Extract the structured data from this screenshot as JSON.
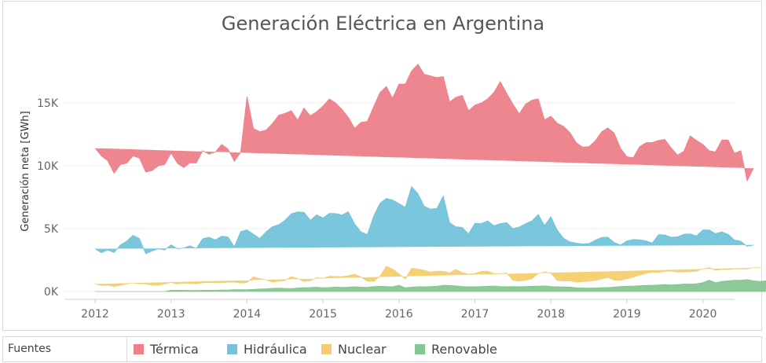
{
  "chart_data": {
    "type": "area",
    "stacked": true,
    "title": "Generación Eléctrica en Argentina",
    "xlabel": "",
    "ylabel": "Generación neta [GWh]",
    "ylim": [
      0,
      19000
    ],
    "y_ticks": [
      0,
      5000,
      10000,
      15000
    ],
    "y_tick_labels": [
      "0K",
      "5K",
      "10K",
      "15K"
    ],
    "x_ticks": [
      2012,
      2013,
      2014,
      2015,
      2016,
      2017,
      2018,
      2019,
      2020
    ],
    "x_tick_labels": [
      "2012",
      "2013",
      "2014",
      "2015",
      "2016",
      "2017",
      "2018",
      "2019",
      "2020"
    ],
    "x_start": 2012.0,
    "x_step_months": 1,
    "grid": "horizontal",
    "legend_position": "bottom",
    "series": [
      {
        "name": "Renovable",
        "color": "#86c691",
        "values": [
          0,
          0,
          0,
          0,
          0,
          0,
          0,
          0,
          0,
          0,
          0,
          0,
          100,
          100,
          100,
          80,
          80,
          100,
          100,
          100,
          120,
          120,
          150,
          150,
          150,
          170,
          200,
          220,
          250,
          270,
          250,
          230,
          280,
          300,
          320,
          350,
          300,
          320,
          350,
          330,
          350,
          380,
          350,
          330,
          400,
          420,
          400,
          380,
          500,
          300,
          350,
          380,
          380,
          400,
          420,
          500,
          480,
          450,
          400,
          380,
          380,
          400,
          420,
          440,
          400,
          380,
          400,
          380,
          400,
          420,
          430,
          450,
          400,
          380,
          360,
          350,
          300,
          280,
          270,
          280,
          300,
          320,
          350,
          400,
          420,
          440,
          460,
          480,
          500,
          520,
          550,
          520,
          550,
          600,
          580,
          620,
          700,
          900,
          700,
          800,
          850,
          900,
          900,
          950,
          850,
          800,
          850
        ]
      },
      {
        "name": "Nuclear",
        "color": "#f5cd6e",
        "values": [
          600,
          480,
          500,
          400,
          500,
          600,
          680,
          620,
          600,
          520,
          500,
          600,
          620,
          500,
          560,
          560,
          540,
          600,
          620,
          600,
          580,
          620,
          600,
          520,
          560,
          1000,
          820,
          720,
          500,
          550,
          620,
          950,
          750,
          500,
          550,
          750,
          750,
          900,
          850,
          850,
          900,
          1000,
          800,
          500,
          400,
          800,
          1600,
          1400,
          900,
          700,
          1500,
          1400,
          1300,
          1150,
          1200,
          1100,
          1000,
          1300,
          1100,
          1000,
          1050,
          1200,
          1200,
          1000,
          1000,
          1100,
          500,
          450,
          500,
          600,
          1000,
          1100,
          1050,
          500,
          480,
          500,
          450,
          500,
          550,
          600,
          700,
          800,
          550,
          500,
          600,
          700,
          850,
          950,
          1050,
          1000,
          1050,
          1100,
          1000,
          950,
          1000,
          1000,
          1100,
          1000,
          1000,
          950,
          900,
          900,
          900,
          850,
          1050,
          1100
        ]
      },
      {
        "name": "Hidráulica",
        "color": "#72c3db",
        "values": [
          2800,
          2600,
          2800,
          2700,
          3200,
          3400,
          3800,
          3600,
          2400,
          2700,
          2900,
          2700,
          3000,
          2800,
          2800,
          3000,
          2800,
          3500,
          3600,
          3400,
          3700,
          3600,
          2800,
          4100,
          4200,
          3400,
          3200,
          3800,
          4400,
          4500,
          4800,
          5000,
          5300,
          5500,
          4800,
          5000,
          4800,
          5000,
          5000,
          4900,
          5100,
          4000,
          3600,
          3700,
          5200,
          5800,
          5400,
          5500,
          5600,
          5700,
          6500,
          6000,
          5100,
          5000,
          5000,
          6000,
          4000,
          3400,
          3600,
          3200,
          4000,
          3800,
          4000,
          3800,
          4000,
          4000,
          4100,
          4300,
          4500,
          4600,
          4700,
          3700,
          4500,
          4000,
          3400,
          3100,
          3100,
          3000,
          3000,
          3200,
          3300,
          3200,
          3000,
          2800,
          3000,
          3000,
          2800,
          2600,
          2300,
          3000,
          2900,
          2700,
          2800,
          3000,
          3000,
          2800,
          3100,
          3000,
          2900,
          3000,
          2800,
          2300,
          2200,
          1800,
          1800
        ]
      },
      {
        "name": "Térmica",
        "color": "#ed7f8a",
        "values": [
          8000,
          7700,
          7100,
          6300,
          6400,
          6200,
          6300,
          6400,
          6500,
          6400,
          6600,
          6800,
          7300,
          6800,
          6400,
          6600,
          6800,
          7000,
          6600,
          7000,
          7300,
          7000,
          6800,
          6300,
          10600,
          8400,
          8500,
          8100,
          8200,
          8700,
          8500,
          8200,
          7300,
          8300,
          8300,
          8200,
          8900,
          9100,
          8800,
          8400,
          7500,
          7600,
          8700,
          9000,
          8700,
          8800,
          8900,
          8100,
          9500,
          9800,
          9200,
          10300,
          10500,
          10600,
          10400,
          9500,
          9600,
          10300,
          10500,
          9800,
          9400,
          9600,
          9700,
          10600,
          11300,
          10300,
          9900,
          9000,
          9500,
          9600,
          9200,
          8400,
          8000,
          8500,
          8900,
          8700,
          8000,
          7700,
          7700,
          7900,
          8400,
          8700,
          8700,
          7700,
          6700,
          6500,
          7400,
          7800,
          8000,
          7500,
          7600,
          7100,
          6500,
          6600,
          7800,
          7600,
          6800,
          6300,
          6500,
          7300,
          7500,
          6900,
          7200,
          5200,
          6100
        ]
      }
    ]
  },
  "legend": {
    "title": "Fuentes",
    "items": [
      {
        "label": "Térmica",
        "color": "#ed7f8a"
      },
      {
        "label": "Hidráulica",
        "color": "#72c3db"
      },
      {
        "label": "Nuclear",
        "color": "#f5cd6e"
      },
      {
        "label": "Renovable",
        "color": "#86c691"
      }
    ]
  }
}
